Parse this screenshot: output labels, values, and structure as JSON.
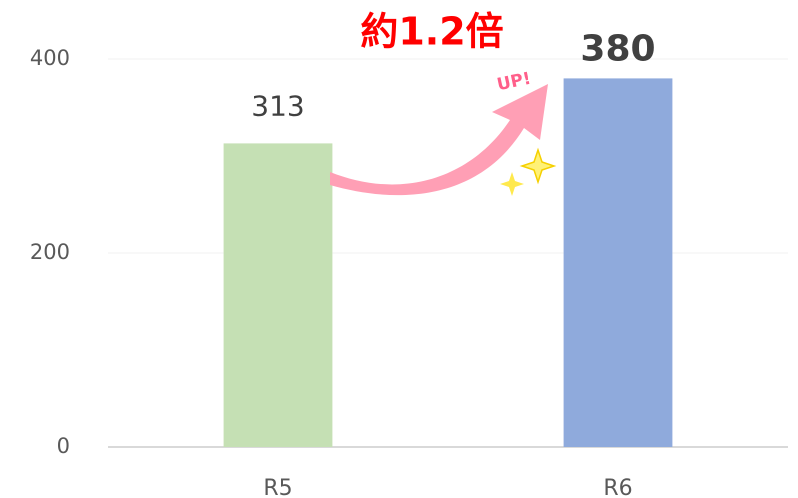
{
  "chart_data": {
    "type": "bar",
    "categories": [
      "R5",
      "R6"
    ],
    "values": [
      313,
      380
    ],
    "colors": [
      "#c5e0b4",
      "#8faadc"
    ],
    "ylim": [
      0,
      400
    ],
    "yticks": [
      0,
      200,
      400
    ],
    "grid": true,
    "annotations": [
      "約1.2倍",
      "UP!"
    ]
  }
}
